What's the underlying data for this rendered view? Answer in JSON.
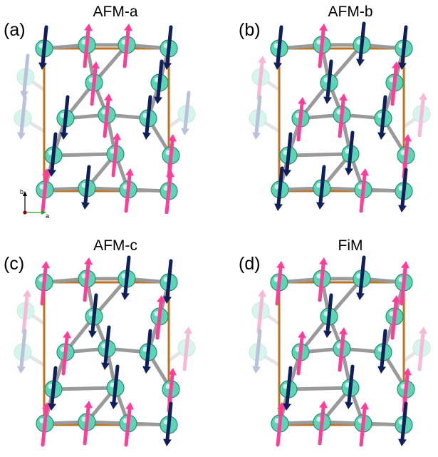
{
  "panels": [
    {
      "id": "a",
      "label": "(a)",
      "title": "AFM-a",
      "spins": [
        "dn",
        "up",
        "up",
        "dn",
        "up",
        "dn",
        "dn",
        "up",
        "dn",
        "dn",
        "up",
        "up",
        "up",
        "dn",
        "up",
        "up",
        "dn"
      ],
      "ghost_spins": [
        "dn",
        "dn",
        "dn"
      ]
    },
    {
      "id": "b",
      "label": "(b)",
      "title": "AFM-b",
      "spins": [
        "dn",
        "up",
        "dn",
        "dn",
        "dn",
        "up",
        "up",
        "up",
        "dn",
        "dn",
        "dn",
        "up",
        "dn",
        "dn",
        "up",
        "dn",
        "dn"
      ],
      "ghost_spins": [
        "up",
        "dn",
        "up"
      ]
    },
    {
      "id": "c",
      "label": "(c)",
      "title": "AFM-c",
      "spins": [
        "up",
        "up",
        "dn",
        "dn",
        "dn",
        "up",
        "up",
        "dn",
        "dn",
        "dn",
        "dn",
        "up",
        "up",
        "up",
        "up",
        "dn",
        "up"
      ],
      "ghost_spins": [
        "up",
        "dn",
        "up"
      ]
    },
    {
      "id": "d",
      "label": "(d)",
      "title": "FiM",
      "spins": [
        "up",
        "up",
        "dn",
        "up",
        "dn",
        "up",
        "up",
        "up",
        "dn",
        "dn",
        "dn",
        "up",
        "up",
        "up",
        "up",
        "dn",
        "up"
      ],
      "ghost_spins": [
        "up",
        "dn",
        "up"
      ]
    }
  ],
  "axes": {
    "b": "b",
    "a": "a"
  },
  "colors": {
    "atom": "#5ad6b4",
    "atom_edge": "#2c8a72",
    "spin_up": "#ff3d9a",
    "spin_down": "#0e1f5c",
    "ghost_up": "#f7b9d6",
    "ghost_down": "#b9c2d8",
    "bond": "#9a9a9a",
    "cell_edge": "#c0701e",
    "axis_a": "#2ea02e",
    "axis_b": "#000000",
    "origin": "#7a1010"
  }
}
